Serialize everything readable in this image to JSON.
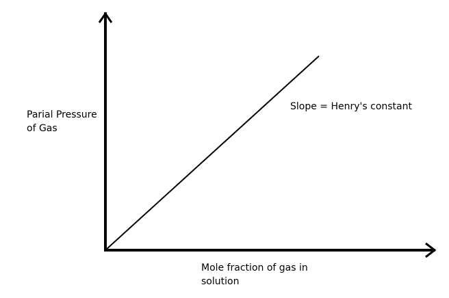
{
  "chart_data": {
    "type": "line",
    "title": "",
    "xlabel": "Mole fraction of gas in\nsolution",
    "ylabel": "Parial Pressure\nof Gas",
    "annotation": "Slope = Henry's constant",
    "x": [
      0,
      1
    ],
    "series": [
      {
        "values": [
          0,
          1
        ]
      }
    ],
    "xlim": [
      0,
      1
    ],
    "ylim": [
      0,
      1
    ],
    "grid": false,
    "line_color": "#000000"
  }
}
